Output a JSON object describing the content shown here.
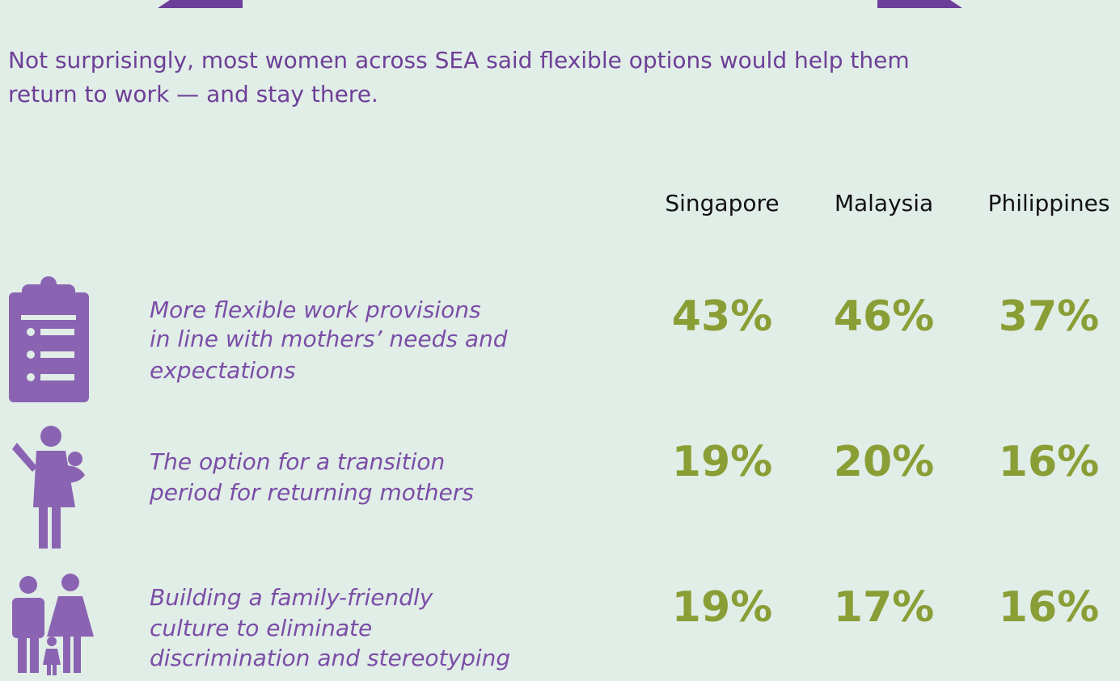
{
  "intro": [
    "Not surprisingly, most women across SEA said flexible options would help them",
    "return to work — and stay there."
  ],
  "table": {
    "columns": [
      "Singapore",
      "Malaysia",
      "Philippines"
    ],
    "rows": [
      {
        "label": [
          "More flexible work provisions",
          "in line with mothers’ needs and",
          "expectations"
        ],
        "values": [
          "43%",
          "46%",
          "37%"
        ]
      },
      {
        "label": [
          "The option for a transition",
          "period for returning mothers"
        ],
        "values": [
          "19%",
          "20%",
          "16%"
        ]
      },
      {
        "label": [
          "Building a family-friendly",
          "culture to eliminate",
          "discrimination and stereotyping"
        ],
        "values": [
          "19%",
          "17%",
          "16%"
        ]
      }
    ]
  }
}
